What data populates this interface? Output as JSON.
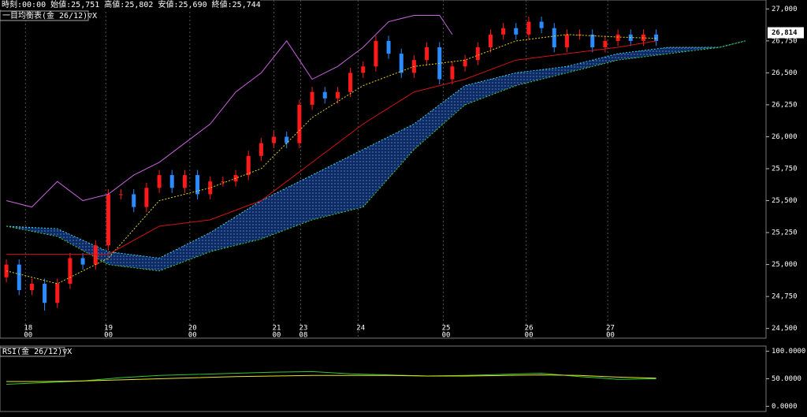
{
  "chart_data": [
    {
      "type": "candlestick",
      "title": "時刻:00:00 始値:25,751 高値:25,802 安値:25,690 終値:25,744",
      "subtitle": "一目均衡表(金 26/12)▽X",
      "last_price": {
        "value": 26814,
        "label": "26,814"
      },
      "up_color": "#ff1a1a",
      "down_color": "#2a8cff",
      "xlim": [
        -0.5,
        59.5
      ],
      "ylim": [
        24430,
        27070
      ],
      "yticks": [
        {
          "value": 27000,
          "label": "27,000"
        },
        {
          "value": 26750,
          "label": "26,750"
        },
        {
          "value": 26500,
          "label": "26,500"
        },
        {
          "value": 26250,
          "label": "26,250"
        },
        {
          "value": 26000,
          "label": "26,000"
        },
        {
          "value": 25750,
          "label": "25,750"
        },
        {
          "value": 25500,
          "label": "25,500"
        },
        {
          "value": 25250,
          "label": "25,250"
        },
        {
          "value": 25000,
          "label": "25,000"
        },
        {
          "value": 24750,
          "label": "24,750"
        },
        {
          "value": 24500,
          "label": "24,500"
        }
      ],
      "xticks": [
        {
          "value": 1.5,
          "label": "18"
        },
        {
          "value": 7.8,
          "label": "19"
        },
        {
          "value": 14.4,
          "label": "20"
        },
        {
          "value": 21.0,
          "label": "21"
        },
        {
          "value": 23.1,
          "label": "23"
        },
        {
          "value": 27.6,
          "label": "24"
        },
        {
          "value": 34.3,
          "label": "25"
        },
        {
          "value": 40.8,
          "label": "26"
        },
        {
          "value": 47.2,
          "label": "27"
        }
      ],
      "xtick_sublabels": [
        "00",
        "00",
        "00",
        "00",
        "08",
        null,
        "00",
        "00",
        "00"
      ],
      "grid": true,
      "open": [
        24900,
        25000,
        24800,
        24850,
        24700,
        24850,
        25050,
        25000,
        25150,
        25550,
        25550,
        25450,
        25600,
        25700,
        25600,
        25700,
        25550,
        25650,
        25650,
        25700,
        25850,
        25950,
        26000,
        25950,
        26250,
        26350,
        26300,
        26350,
        26500,
        26550,
        26750,
        26650,
        26500,
        26600,
        26700,
        26450,
        26550,
        26600,
        26700,
        26800,
        26850,
        26800,
        26900,
        26850,
        26700,
        26800,
        26800,
        26700,
        26750,
        26800,
        26750,
        26800
      ],
      "high": [
        25040,
        25040,
        24890,
        24890,
        24890,
        25090,
        25090,
        25190,
        25590,
        25590,
        25590,
        25640,
        25740,
        25740,
        25740,
        25740,
        25690,
        25690,
        25740,
        25890,
        25990,
        26040,
        26040,
        26290,
        26390,
        26390,
        26390,
        26540,
        26590,
        26790,
        26790,
        26690,
        26640,
        26740,
        26740,
        26590,
        26640,
        26740,
        26840,
        26890,
        26890,
        26940,
        26940,
        26890,
        26840,
        26840,
        26840,
        26790,
        26840,
        26840,
        26840,
        26840
      ],
      "low": [
        24860,
        24760,
        24760,
        24640,
        24660,
        24810,
        24960,
        24960,
        25110,
        25510,
        25410,
        25410,
        25560,
        25560,
        25560,
        25510,
        25510,
        25610,
        25610,
        25660,
        25810,
        25910,
        25910,
        25910,
        26210,
        26260,
        26260,
        26310,
        26460,
        26510,
        26610,
        26460,
        26460,
        26560,
        26410,
        26410,
        26510,
        26560,
        26660,
        26760,
        26760,
        26760,
        26810,
        26660,
        26660,
        26760,
        26660,
        26660,
        26710,
        26710,
        26710,
        26710
      ],
      "close": [
        25000,
        24800,
        24850,
        24700,
        24850,
        25050,
        25000,
        25150,
        25550,
        25550,
        25450,
        25600,
        25700,
        25600,
        25700,
        25550,
        25650,
        25650,
        25700,
        25850,
        25950,
        26000,
        25950,
        26250,
        26350,
        26300,
        26350,
        26500,
        26550,
        26750,
        26650,
        26500,
        26600,
        26700,
        26450,
        26550,
        26600,
        26700,
        26800,
        26850,
        26800,
        26900,
        26850,
        26700,
        26800,
        26800,
        26700,
        26750,
        26800,
        26750,
        26800,
        26750
      ],
      "kumo": {
        "fill": "#0b2a66",
        "x": [
          0,
          4,
          8,
          12,
          16,
          20,
          24,
          28,
          32,
          36,
          40,
          44,
          48,
          52,
          56,
          58
        ],
        "span_a": {
          "color": "#39d7e6",
          "values": [
            25300,
            25280,
            25100,
            25050,
            25250,
            25500,
            25700,
            25900,
            26100,
            26400,
            26500,
            26550,
            26650,
            26700,
            26700,
            26750
          ]
        },
        "span_b": {
          "color": "#3cd23c",
          "values": [
            25300,
            25220,
            25000,
            24950,
            25100,
            25200,
            25350,
            25450,
            25900,
            26250,
            26400,
            26500,
            26600,
            26650,
            26700,
            26750
          ]
        }
      },
      "series": [
        {
          "color": "#e6d21e",
          "dash": true,
          "x": [
            0,
            4,
            8,
            12,
            16,
            20,
            24,
            28,
            32,
            36,
            40,
            44,
            48,
            51
          ],
          "values": [
            24950,
            24850,
            25050,
            25500,
            25600,
            25750,
            26150,
            26400,
            26550,
            26600,
            26750,
            26800,
            26780,
            26770
          ]
        },
        {
          "color": "#d21414",
          "dash": false,
          "x": [
            0,
            4,
            8,
            12,
            16,
            20,
            24,
            28,
            32,
            36,
            40,
            44,
            48,
            51
          ],
          "values": [
            25080,
            25080,
            25080,
            25300,
            25350,
            25500,
            25800,
            26100,
            26350,
            26450,
            26600,
            26650,
            26700,
            26750
          ]
        },
        {
          "color": "#c864dc",
          "dash": false,
          "x": [
            0,
            2,
            4,
            6,
            8,
            10,
            12,
            14,
            16,
            18,
            20,
            22,
            24,
            26,
            28,
            30,
            32,
            34,
            35
          ],
          "values": [
            25500,
            25450,
            25650,
            25500,
            25550,
            25700,
            25800,
            25950,
            26100,
            26350,
            26500,
            26750,
            26450,
            26550,
            26700,
            26900,
            26950,
            26950,
            26800
          ]
        }
      ]
    },
    {
      "type": "line",
      "title": "RSI(金 26/12)▽X",
      "xlim": [
        -0.5,
        59.5
      ],
      "ylim": [
        -8,
        108
      ],
      "yticks": [
        {
          "value": 100,
          "label": "100.0000"
        },
        {
          "value": 50,
          "label": "50.0000"
        },
        {
          "value": 0,
          "label": "0.0000"
        }
      ],
      "x": [
        0,
        3,
        6,
        9,
        12,
        15,
        18,
        21,
        24,
        27,
        30,
        33,
        36,
        39,
        42,
        45,
        48,
        51
      ],
      "series": [
        {
          "color": "#32c832",
          "values": [
            40,
            43,
            46,
            52,
            56,
            58,
            60,
            62,
            63,
            59,
            57,
            55,
            56,
            58,
            60,
            54,
            49,
            50
          ]
        },
        {
          "color": "#e6e61e",
          "values": [
            45,
            45,
            46,
            48,
            50,
            52,
            54,
            55,
            56,
            56,
            56,
            55,
            55,
            56,
            57,
            56,
            53,
            51
          ]
        }
      ]
    }
  ]
}
